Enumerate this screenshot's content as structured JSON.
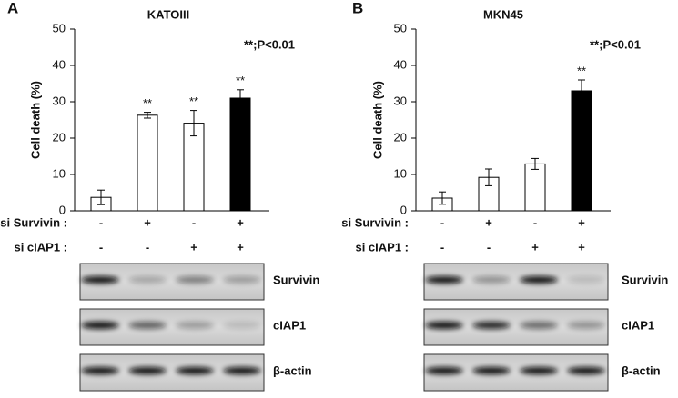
{
  "chart_data": [
    {
      "type": "bar",
      "panel_label": "A",
      "title": "KATOIII",
      "y_label": "Cell death (%)",
      "annotation": "**;P<0.01",
      "categories": [
        null,
        null,
        null,
        null
      ],
      "values": [
        3.7,
        26.3,
        24.1,
        31.0
      ],
      "errors": [
        2.0,
        0.8,
        3.5,
        2.3
      ],
      "colors": [
        "#ffffff",
        "#ffffff",
        "#ffffff",
        "#000000"
      ],
      "significance": [
        null,
        "**",
        "**",
        "**"
      ],
      "ylim": [
        0,
        50
      ],
      "yticks": [
        0,
        10,
        20,
        30,
        40,
        50
      ],
      "conditions": [
        {
          "name": "si Survivin :",
          "signs": [
            "-",
            "+",
            "-",
            "+"
          ]
        },
        {
          "name": "si cIAP1 :",
          "signs": [
            "-",
            "-",
            "+",
            "+"
          ]
        }
      ],
      "blot_labels": [
        "Survivin",
        "cIAP1",
        "β-actin"
      ]
    },
    {
      "type": "bar",
      "panel_label": "B",
      "title": "MKN45",
      "y_label": "Cell death (%)",
      "annotation": "**;P<0.01",
      "categories": [
        null,
        null,
        null,
        null
      ],
      "values": [
        3.5,
        9.2,
        12.9,
        33.0
      ],
      "errors": [
        1.7,
        2.3,
        1.5,
        3.0
      ],
      "colors": [
        "#ffffff",
        "#ffffff",
        "#ffffff",
        "#000000"
      ],
      "significance": [
        null,
        null,
        null,
        "**"
      ],
      "ylim": [
        0,
        50
      ],
      "yticks": [
        0,
        10,
        20,
        30,
        40,
        50
      ],
      "conditions": [
        {
          "name": "si Survivin :",
          "signs": [
            "-",
            "+",
            "-",
            "+"
          ]
        },
        {
          "name": "si cIAP1 :",
          "signs": [
            "-",
            "-",
            "+",
            "+"
          ]
        }
      ],
      "blot_labels": [
        "Survivin",
        "cIAP1",
        "β-actin"
      ]
    }
  ]
}
